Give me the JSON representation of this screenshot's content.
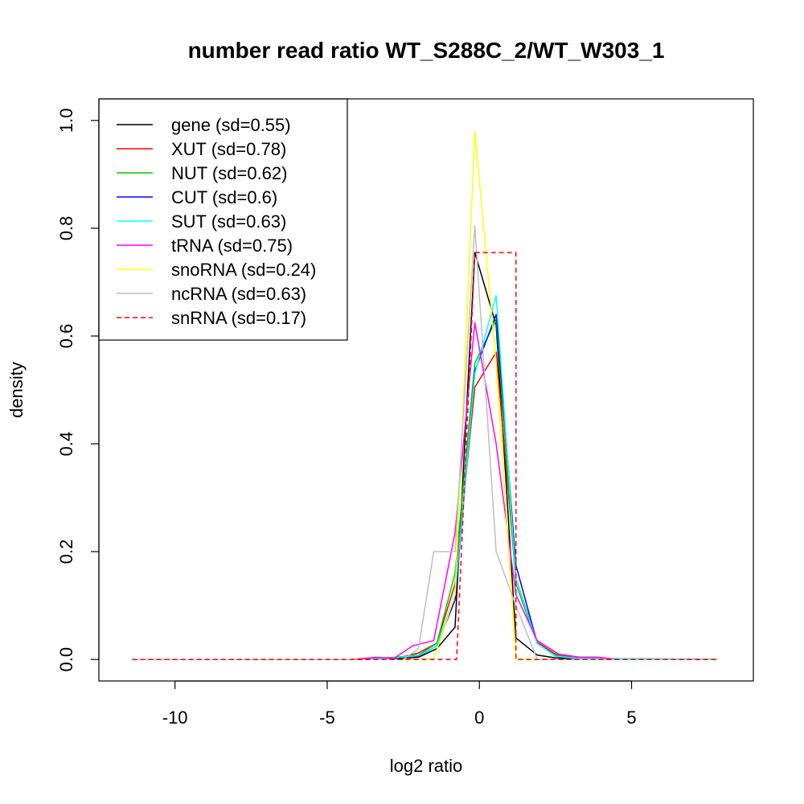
{
  "chart_data": {
    "type": "line",
    "title": "number read ratio WT_S288C_2/WT_W303_1",
    "xlabel": "log2 ratio",
    "ylabel": "density",
    "xlim": [
      -12.5,
      9
    ],
    "ylim": [
      -0.04,
      1.04
    ],
    "xticks": [
      -10,
      -5,
      0,
      5
    ],
    "xtick_labels": [
      "-10",
      "-5",
      "0",
      "5"
    ],
    "yticks": [
      0,
      0.2,
      0.4,
      0.6,
      0.8,
      1.0
    ],
    "ytick_labels": [
      "0.0",
      "0.2",
      "0.4",
      "0.6",
      "0.8",
      "1.0"
    ],
    "grid": false,
    "legend_position": "top-left",
    "series": [
      {
        "name": "gene (sd=0.55)",
        "color": "#000000",
        "dash": false,
        "x": [
          -11.4,
          -4.2,
          -3.6,
          -3.0,
          -2.6,
          -2.0,
          -1.4,
          -0.8,
          -0.15,
          0.55,
          1.2,
          1.9,
          2.5,
          3.2,
          4.0,
          7.8
        ],
        "y": [
          0,
          0,
          0,
          0,
          0.002,
          0.004,
          0.02,
          0.06,
          0.755,
          0.62,
          0.04,
          0.008,
          0.003,
          0.001,
          0,
          0
        ]
      },
      {
        "name": "XUT (sd=0.78)",
        "color": "#ff0000",
        "dash": false,
        "x": [
          -11.4,
          -4.2,
          -3.6,
          -3.0,
          -2.5,
          -2.0,
          -1.4,
          -0.8,
          -0.15,
          0.55,
          1.2,
          1.9,
          2.5,
          3.2,
          3.9,
          4.5,
          7.8
        ],
        "y": [
          0,
          0,
          0.003,
          0.002,
          0.005,
          0.012,
          0.03,
          0.14,
          0.505,
          0.57,
          0.15,
          0.032,
          0.01,
          0.004,
          0.004,
          0,
          0
        ]
      },
      {
        "name": "NUT (sd=0.62)",
        "color": "#00cc00",
        "dash": false,
        "x": [
          -11.4,
          -4.0,
          -3.4,
          -2.8,
          -2.0,
          -1.4,
          -0.8,
          -0.15,
          0.55,
          1.2,
          1.9,
          2.5,
          3.2,
          7.8
        ],
        "y": [
          0,
          0,
          0.002,
          0.004,
          0.008,
          0.03,
          0.16,
          0.55,
          0.63,
          0.14,
          0.03,
          0.008,
          0.002,
          0
        ]
      },
      {
        "name": "CUT (sd=0.6)",
        "color": "#0000ff",
        "dash": false,
        "x": [
          -11.4,
          -4.0,
          -3.0,
          -2.0,
          -1.4,
          -0.8,
          -0.15,
          0.55,
          1.2,
          1.9,
          2.5,
          3.2,
          7.8
        ],
        "y": [
          0,
          0,
          0.002,
          0.006,
          0.025,
          0.11,
          0.535,
          0.64,
          0.175,
          0.03,
          0.006,
          0.001,
          0
        ]
      },
      {
        "name": "SUT (sd=0.63)",
        "color": "#00ffff",
        "dash": false,
        "x": [
          -11.4,
          -4.0,
          -3.0,
          -2.0,
          -1.4,
          -0.8,
          -0.15,
          0.55,
          1.2,
          1.9,
          2.5,
          3.2,
          7.8
        ],
        "y": [
          0,
          0,
          0.002,
          0.007,
          0.025,
          0.12,
          0.53,
          0.675,
          0.15,
          0.03,
          0.006,
          0.002,
          0
        ]
      },
      {
        "name": "tRNA (sd=0.75)",
        "color": "#ff00ff",
        "dash": false,
        "x": [
          -11.4,
          -4.0,
          -3.4,
          -2.8,
          -2.2,
          -1.5,
          -0.8,
          -0.15,
          0.55,
          1.2,
          1.9,
          2.6,
          3.3,
          3.9,
          4.5,
          7.8
        ],
        "y": [
          0,
          0,
          0.004,
          0.002,
          0.025,
          0.035,
          0.235,
          0.625,
          0.4,
          0.12,
          0.035,
          0.01,
          0.004,
          0.004,
          0,
          0
        ]
      },
      {
        "name": "snoRNA (sd=0.24)",
        "color": "#ffff00",
        "dash": false,
        "x": [
          -11.4,
          -1.5,
          -0.8,
          -0.15,
          0.55,
          1.2,
          7.8
        ],
        "y": [
          0,
          0,
          0.12,
          0.98,
          0.55,
          0,
          0
        ]
      },
      {
        "name": "ncRNA (sd=0.63)",
        "color": "#bebebe",
        "dash": false,
        "x": [
          -11.4,
          -2.5,
          -2.0,
          -1.5,
          -0.8,
          -0.15,
          0.55,
          1.2,
          1.9,
          7.8
        ],
        "y": [
          0,
          0,
          0.02,
          0.2,
          0.2,
          0.805,
          0.2,
          0.1,
          0,
          0
        ]
      },
      {
        "name": "snRNA (sd=0.17)",
        "color": "#ff0000",
        "dash": true,
        "x": [
          -11.4,
          -0.75,
          -0.75,
          -0.15,
          0.55,
          1.2,
          1.2,
          7.8
        ],
        "y": [
          0,
          0,
          0,
          0.755,
          0.755,
          0.755,
          0,
          0
        ]
      }
    ]
  }
}
